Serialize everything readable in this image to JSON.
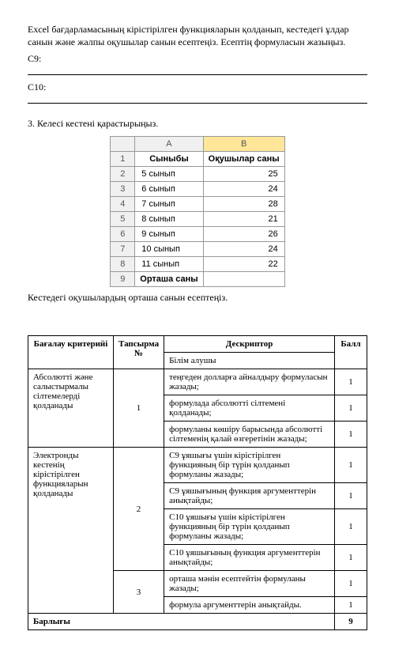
{
  "intro": "Excel бағдарламасының кірістірілген функцияларын қолданып, кестедегі ұлдар санын және жалпы оқушылар санын есептеңіз. Есептің формуласын жазыңыз.",
  "c9": "С9:",
  "c10": "С10:",
  "task3": "3. Келесі кестені қарастырыңыз.",
  "excel": {
    "colA": "A",
    "colB": "B",
    "hdrA": "Сыныбы",
    "hdrB": "Оқушылар саны",
    "rows": [
      {
        "n": "2",
        "a": "5 сынып",
        "b": "25"
      },
      {
        "n": "3",
        "a": "6 сынып",
        "b": "24"
      },
      {
        "n": "4",
        "a": "7 сынып",
        "b": "28"
      },
      {
        "n": "5",
        "a": "8 сынып",
        "b": "21"
      },
      {
        "n": "6",
        "a": "9 сынып",
        "b": "26"
      },
      {
        "n": "7",
        "a": "10 сынып",
        "b": "24"
      },
      {
        "n": "8",
        "a": "11 сынып",
        "b": "22"
      }
    ],
    "footerN": "9",
    "footerA": "Орташа саны"
  },
  "caption": "Кестедегі оқушылардың орташа санын есептеңіз.",
  "rubric": {
    "h1": "Бағалау критерийі",
    "h2": "Тапсырма №",
    "h3": "Дескриптор",
    "h4": "Балл",
    "sub": "Білім алушы",
    "crit1": "Абсолютті және салыстырмалы сілтемелерді қолданады",
    "crit2": "Электронды кестенің кірістірілген функцияларын қолданады",
    "t1": "1",
    "t2": "2",
    "t3": "3",
    "d1": "теңгеден долларға айналдыру формуласын жазады;",
    "d2": "формулада абсолютті сілтемені қолданады;",
    "d3": "формуланы көшіру барысында абсолютті сілтеменің қалай өзгеретінін жазады;",
    "d4": "С9 ұяшығы үшін кірістірілген функцияның бір түрін қолданып формуланы жазады;",
    "d5": "С9 ұяшығының функция аргументтерін анықтайды;",
    "d6": "С10 ұяшығы үшін кірістірілген функцияның бір түрін қолданып формуланы жазады;",
    "d7": "С10 ұяшығының функция аргументтерін анықтайды;",
    "d8": "орташа мәнін есептейтін формуланы жазады;",
    "d9": "формула аргументтерін анықтайды.",
    "s": "1",
    "total": "Барлығы",
    "totalScore": "9"
  }
}
